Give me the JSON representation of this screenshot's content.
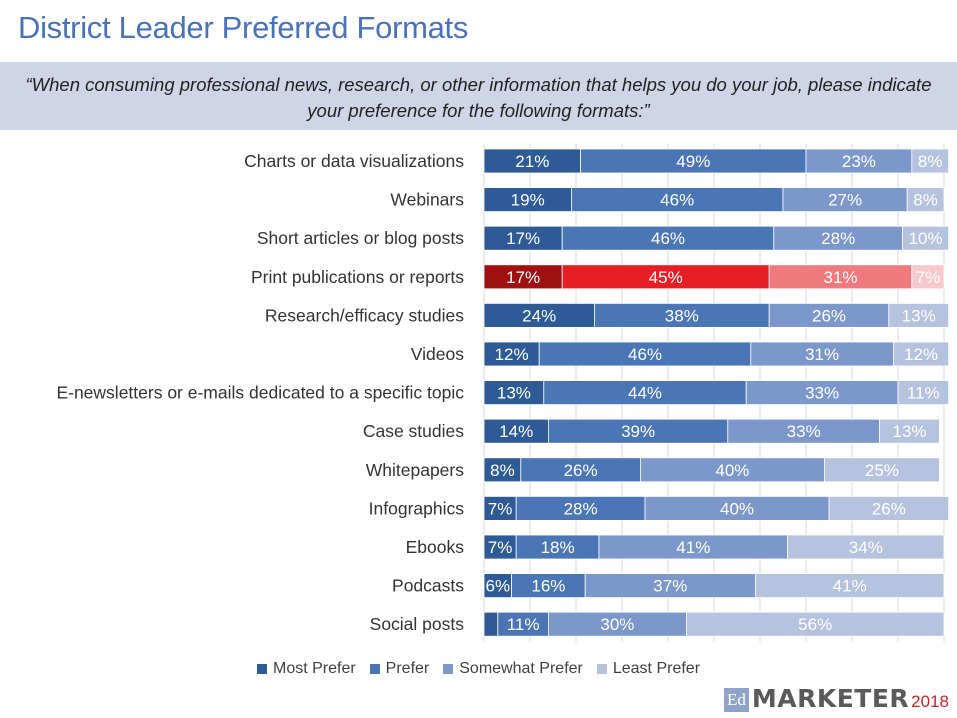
{
  "header": {
    "title": "District Leader Preferred Formats",
    "question": "“When consuming professional news, research, or other information that helps you do your job, please indicate your preference for the following formats:”"
  },
  "chart_data": {
    "type": "bar",
    "orientation": "horizontal",
    "stacked": true,
    "categories": [
      "Charts or data visualizations",
      "Webinars",
      "Short articles or blog posts",
      "Print publications or reports",
      "Research/efficacy studies",
      "Videos",
      "E-newsletters or e-mails dedicated to a specific topic",
      "Case studies",
      "Whitepapers",
      "Infographics",
      "Ebooks",
      "Podcasts",
      "Social posts"
    ],
    "series": [
      {
        "name": "Most Prefer",
        "values": [
          21,
          19,
          17,
          17,
          24,
          12,
          13,
          14,
          8,
          7,
          7,
          6,
          3
        ]
      },
      {
        "name": "Prefer",
        "values": [
          49,
          46,
          46,
          45,
          38,
          46,
          44,
          39,
          26,
          28,
          18,
          16,
          11
        ]
      },
      {
        "name": "Somewhat Prefer",
        "values": [
          23,
          27,
          28,
          31,
          26,
          31,
          33,
          33,
          40,
          40,
          41,
          37,
          30
        ]
      },
      {
        "name": "Least Prefer",
        "values": [
          8,
          8,
          10,
          7,
          13,
          12,
          11,
          13,
          25,
          26,
          34,
          41,
          56
        ]
      }
    ],
    "labels": [
      [
        "21%",
        "49%",
        "23%",
        "8%"
      ],
      [
        "19%",
        "46%",
        "27%",
        "8%"
      ],
      [
        "17%",
        "46%",
        "28%",
        "10%"
      ],
      [
        "17%",
        "45%",
        "31%",
        "7%"
      ],
      [
        "24%",
        "38%",
        "26%",
        "13%"
      ],
      [
        "12%",
        "46%",
        "31%",
        "12%"
      ],
      [
        "13%",
        "44%",
        "33%",
        "11%"
      ],
      [
        "14%",
        "39%",
        "33%",
        "13%"
      ],
      [
        "8%",
        "26%",
        "40%",
        "25%"
      ],
      [
        "7%",
        "28%",
        "40%",
        "26%"
      ],
      [
        "7%",
        "18%",
        "41%",
        "34%"
      ],
      [
        "6%",
        "16%",
        "37%",
        "41%"
      ],
      [
        "",
        "11%",
        "30%",
        "56%"
      ]
    ],
    "colors": [
      "#2e5b95",
      "#4a76b5",
      "#7c98ca",
      "#b6c3de"
    ],
    "highlight_category": "Print publications or reports",
    "highlight_colors": [
      "#a01010",
      "#e81e26",
      "#f07a7e",
      "#f8c9cb"
    ],
    "xlim": [
      0,
      100
    ],
    "grid": true,
    "legend_position": "bottom"
  },
  "branding": {
    "ed": "Ed",
    "name": "MARKETER",
    "year": "2018"
  }
}
